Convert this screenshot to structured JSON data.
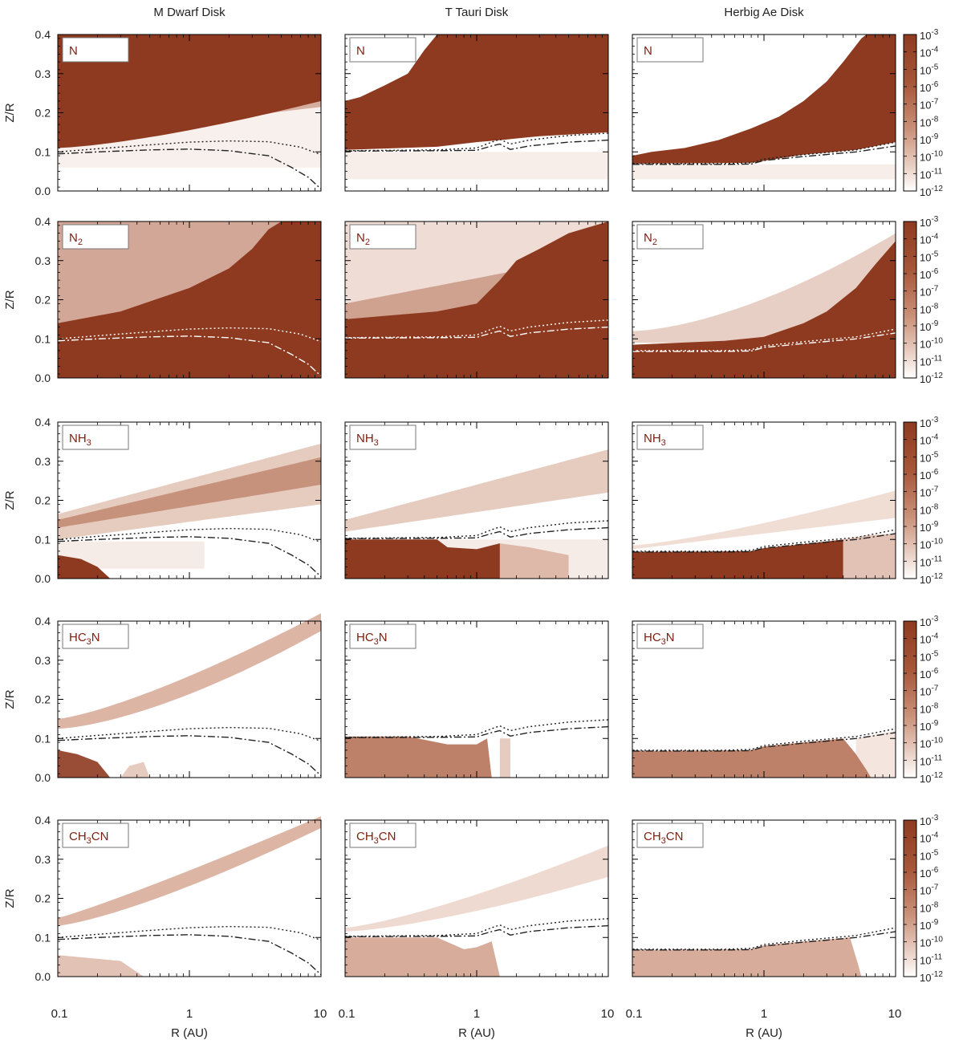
{
  "chart_data": {
    "type": "heatmap",
    "columns": [
      "M Dwarf Disk",
      "T Tauri Disk",
      "Herbig Ae Disk"
    ],
    "species": [
      {
        "base": "N",
        "sub": "",
        "tail": ""
      },
      {
        "base": "N",
        "sub": "2",
        "tail": ""
      },
      {
        "base": "NH",
        "sub": "3",
        "tail": ""
      },
      {
        "base": "HC",
        "sub": "3",
        "tail": "N"
      },
      {
        "base": "CH",
        "sub": "3",
        "tail": "CN"
      }
    ],
    "xlabel": "R (AU)",
    "ylabel": "Z/R",
    "xscale": "log",
    "xlim": [
      0.1,
      10
    ],
    "ylim": [
      0.0,
      0.4
    ],
    "xticks": [
      0.1,
      1,
      10
    ],
    "xtick_labels": [
      "0.1",
      "1",
      "10"
    ],
    "yticks": [
      0.0,
      0.1,
      0.2,
      0.3,
      0.4
    ],
    "ytick_labels": [
      "0.0",
      "0.1",
      "0.2",
      "0.3",
      "0.4"
    ],
    "colorbar": {
      "exponents": [
        -3,
        -4,
        -5,
        -6,
        -7,
        -8,
        -9,
        -10,
        -11,
        -12
      ],
      "labels": [
        "10",
        "10",
        "10",
        "10",
        "10",
        "10",
        "10",
        "10",
        "10",
        "10"
      ],
      "sup": [
        "-3",
        "-4",
        "-5",
        "-6",
        "-7",
        "-8",
        "-9",
        "-10",
        "-11",
        "-12"
      ],
      "color_high": "#8e3a20",
      "color_low": "#ffffff"
    },
    "colors": {
      "dark": "#8e3a20",
      "mid": "#b97960",
      "light": "#d6a895",
      "pale": "#ecd4c9",
      "label_text": "#7a1f0e"
    },
    "boundary_lines": {
      "dotted": {
        "M Dwarf Disk": {
          "x": [
            0.1,
            0.2,
            0.5,
            1,
            2,
            4,
            7,
            10
          ],
          "y": [
            0.1,
            0.108,
            0.118,
            0.125,
            0.128,
            0.126,
            0.112,
            0.093
          ]
        },
        "T Tauri Disk": {
          "x": [
            0.1,
            0.5,
            1,
            1.3,
            1.5,
            1.8,
            2.5,
            5,
            10
          ],
          "y": [
            0.103,
            0.105,
            0.11,
            0.125,
            0.132,
            0.12,
            0.13,
            0.142,
            0.148
          ]
        },
        "Herbig Ae Disk": {
          "x": [
            0.1,
            0.5,
            0.8,
            1,
            2,
            5,
            10
          ],
          "y": [
            0.07,
            0.07,
            0.072,
            0.082,
            0.093,
            0.105,
            0.125
          ]
        }
      },
      "dashdot": {
        "M Dwarf Disk": {
          "x": [
            0.1,
            0.2,
            0.5,
            1,
            2,
            4,
            6,
            8,
            10
          ],
          "y": [
            0.095,
            0.1,
            0.105,
            0.107,
            0.103,
            0.09,
            0.06,
            0.035,
            0.005
          ]
        },
        "T Tauri Disk": {
          "x": [
            0.1,
            0.5,
            1,
            1.3,
            1.5,
            1.8,
            2.5,
            5,
            10
          ],
          "y": [
            0.102,
            0.103,
            0.104,
            0.115,
            0.12,
            0.106,
            0.115,
            0.125,
            0.13
          ]
        },
        "Herbig Ae Disk": {
          "x": [
            0.1,
            0.5,
            0.8,
            1,
            2,
            5,
            10
          ],
          "y": [
            0.068,
            0.068,
            0.069,
            0.078,
            0.088,
            0.1,
            0.115
          ]
        }
      }
    }
  }
}
